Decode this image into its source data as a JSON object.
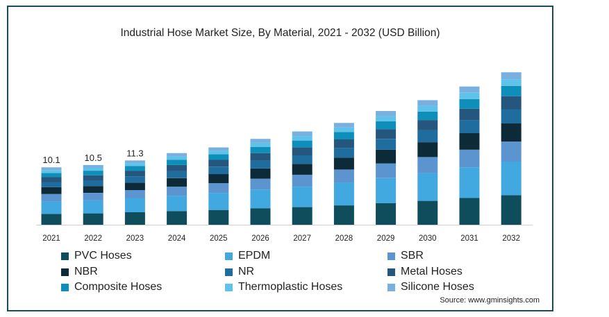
{
  "chart_data": {
    "type": "bar",
    "stacked": true,
    "title": "Industrial Hose Market Size, By Material, 2021 - 2032 (USD Billion)",
    "source": "Source: www.gminsights.com",
    "categories": [
      "2021",
      "2022",
      "2023",
      "2024",
      "2025",
      "2026",
      "2027",
      "2028",
      "2029",
      "2030",
      "2031",
      "2032"
    ],
    "total_labels": [
      "10.1",
      "10.5",
      "11.3",
      "",
      "",
      "",
      "",
      "",
      "",
      "",
      "",
      ""
    ],
    "series": [
      {
        "name": "PVC Hoses",
        "color": "#0f4c5c",
        "values": [
          1.9,
          2.0,
          2.2,
          2.4,
          2.6,
          2.9,
          3.1,
          3.4,
          3.8,
          4.2,
          4.7,
          5.2
        ]
      },
      {
        "name": "EPDM",
        "color": "#42a8e0",
        "values": [
          2.2,
          2.3,
          2.5,
          2.7,
          3.0,
          3.3,
          3.6,
          4.0,
          4.4,
          4.9,
          5.4,
          5.9
        ]
      },
      {
        "name": "SBR",
        "color": "#5b94cf",
        "values": [
          1.3,
          1.3,
          1.4,
          1.6,
          1.7,
          1.9,
          2.1,
          2.3,
          2.6,
          2.8,
          3.1,
          3.5
        ]
      },
      {
        "name": "NBR",
        "color": "#0d2a38",
        "values": [
          1.2,
          1.2,
          1.3,
          1.5,
          1.6,
          1.8,
          1.9,
          2.1,
          2.4,
          2.6,
          2.9,
          3.2
        ]
      },
      {
        "name": "NR",
        "color": "#1f6d9e",
        "values": [
          0.9,
          1.0,
          1.1,
          1.2,
          1.3,
          1.4,
          1.5,
          1.7,
          1.9,
          2.1,
          2.3,
          2.5
        ]
      },
      {
        "name": "Metal Hoses",
        "color": "#25567d",
        "values": [
          0.9,
          0.9,
          1.0,
          1.1,
          1.2,
          1.3,
          1.4,
          1.5,
          1.7,
          1.8,
          2.0,
          2.3
        ]
      },
      {
        "name": "Composite Hoses",
        "color": "#0e8fba",
        "values": [
          0.7,
          0.8,
          0.8,
          0.9,
          1.0,
          1.1,
          1.2,
          1.3,
          1.4,
          1.5,
          1.7,
          1.8
        ]
      },
      {
        "name": "Thermoplastic Hoses",
        "color": "#5fc2ea",
        "values": [
          0.5,
          0.5,
          0.5,
          0.6,
          0.6,
          0.7,
          0.8,
          0.8,
          0.9,
          1.0,
          1.1,
          1.2
        ]
      },
      {
        "name": "Silicone Hoses",
        "color": "#78b0e0",
        "values": [
          0.5,
          0.5,
          0.5,
          0.6,
          0.6,
          0.7,
          0.8,
          0.8,
          0.9,
          1.0,
          1.1,
          1.2
        ]
      }
    ],
    "xlabel": "",
    "ylabel": "",
    "ylim": [
      0,
      27
    ],
    "grid": false,
    "legend_position": "bottom"
  }
}
